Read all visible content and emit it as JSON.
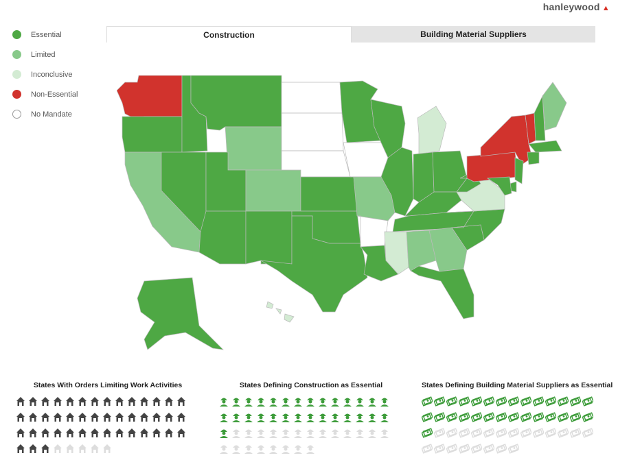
{
  "brand": {
    "name": "hanleywood"
  },
  "legend": [
    {
      "label": "Essential",
      "color": "#4ea844"
    },
    {
      "label": "Limited",
      "color": "#88c98a"
    },
    {
      "label": "Inconclusive",
      "color": "#d3ebd3"
    },
    {
      "label": "Non-Essential",
      "color": "#d1332d"
    },
    {
      "label": "No Mandate",
      "color": "#ffffff"
    }
  ],
  "tabs": [
    {
      "label": "Construction",
      "active": true
    },
    {
      "label": "Building Material Suppliers",
      "active": false
    }
  ],
  "map": {
    "colors": {
      "Essential": "#4ea844",
      "Limited": "#88c98a",
      "Inconclusive": "#d3ebd3",
      "Non-Essential": "#d1332d",
      "No Mandate": "#ffffff"
    },
    "states": [
      {
        "id": "WA",
        "status": "Non-Essential"
      },
      {
        "id": "OR",
        "status": "Essential"
      },
      {
        "id": "CA",
        "status": "Limited"
      },
      {
        "id": "ID",
        "status": "Essential"
      },
      {
        "id": "NV",
        "status": "Essential"
      },
      {
        "id": "MT",
        "status": "Essential"
      },
      {
        "id": "WY",
        "status": "Limited"
      },
      {
        "id": "UT",
        "status": "Essential"
      },
      {
        "id": "AZ",
        "status": "Essential"
      },
      {
        "id": "CO",
        "status": "Limited"
      },
      {
        "id": "NM",
        "status": "Essential"
      },
      {
        "id": "ND",
        "status": "No Mandate"
      },
      {
        "id": "SD",
        "status": "No Mandate"
      },
      {
        "id": "NE",
        "status": "No Mandate"
      },
      {
        "id": "KS",
        "status": "Essential"
      },
      {
        "id": "OK",
        "status": "Essential"
      },
      {
        "id": "TX",
        "status": "Essential"
      },
      {
        "id": "MN",
        "status": "Essential"
      },
      {
        "id": "IA",
        "status": "No Mandate"
      },
      {
        "id": "MO",
        "status": "Limited"
      },
      {
        "id": "AR",
        "status": "No Mandate"
      },
      {
        "id": "LA",
        "status": "Essential"
      },
      {
        "id": "WI",
        "status": "Essential"
      },
      {
        "id": "IL",
        "status": "Essential"
      },
      {
        "id": "MI",
        "status": "Inconclusive"
      },
      {
        "id": "IN",
        "status": "Essential"
      },
      {
        "id": "OH",
        "status": "Essential"
      },
      {
        "id": "KY",
        "status": "Essential"
      },
      {
        "id": "TN",
        "status": "Essential"
      },
      {
        "id": "MS",
        "status": "Inconclusive"
      },
      {
        "id": "AL",
        "status": "Limited"
      },
      {
        "id": "GA",
        "status": "Limited"
      },
      {
        "id": "FL",
        "status": "Essential"
      },
      {
        "id": "SC",
        "status": "Essential"
      },
      {
        "id": "NC",
        "status": "Essential"
      },
      {
        "id": "VA",
        "status": "Inconclusive"
      },
      {
        "id": "WV",
        "status": "Essential"
      },
      {
        "id": "PA",
        "status": "Non-Essential"
      },
      {
        "id": "NY",
        "status": "Non-Essential"
      },
      {
        "id": "VT",
        "status": "Non-Essential"
      },
      {
        "id": "NH",
        "status": "Essential"
      },
      {
        "id": "ME",
        "status": "Limited"
      },
      {
        "id": "MA",
        "status": "Essential"
      },
      {
        "id": "CT",
        "status": "Essential"
      },
      {
        "id": "NJ",
        "status": "Essential"
      },
      {
        "id": "MD",
        "status": "Essential"
      },
      {
        "id": "DE",
        "status": "Essential"
      },
      {
        "id": "AK",
        "status": "Essential"
      },
      {
        "id": "HI",
        "status": "Inconclusive"
      }
    ]
  },
  "stats": [
    {
      "title": "States With Orders Limiting Work Activities",
      "icon": "house-icon",
      "filled": 45,
      "total": 50,
      "fill_color": "#444444",
      "empty_color": "#dddddd"
    },
    {
      "title": "States Defining Construction as Essential",
      "icon": "worker-icon",
      "filled": 29,
      "total": 50,
      "fill_color": "#3d9c3a",
      "empty_color": "#dddddd"
    },
    {
      "title": "States Defining Building Material Suppliers as Essential",
      "icon": "money-icon",
      "filled": 29,
      "total": 50,
      "fill_color": "#3d9c3a",
      "empty_color": "#dddddd"
    }
  ]
}
